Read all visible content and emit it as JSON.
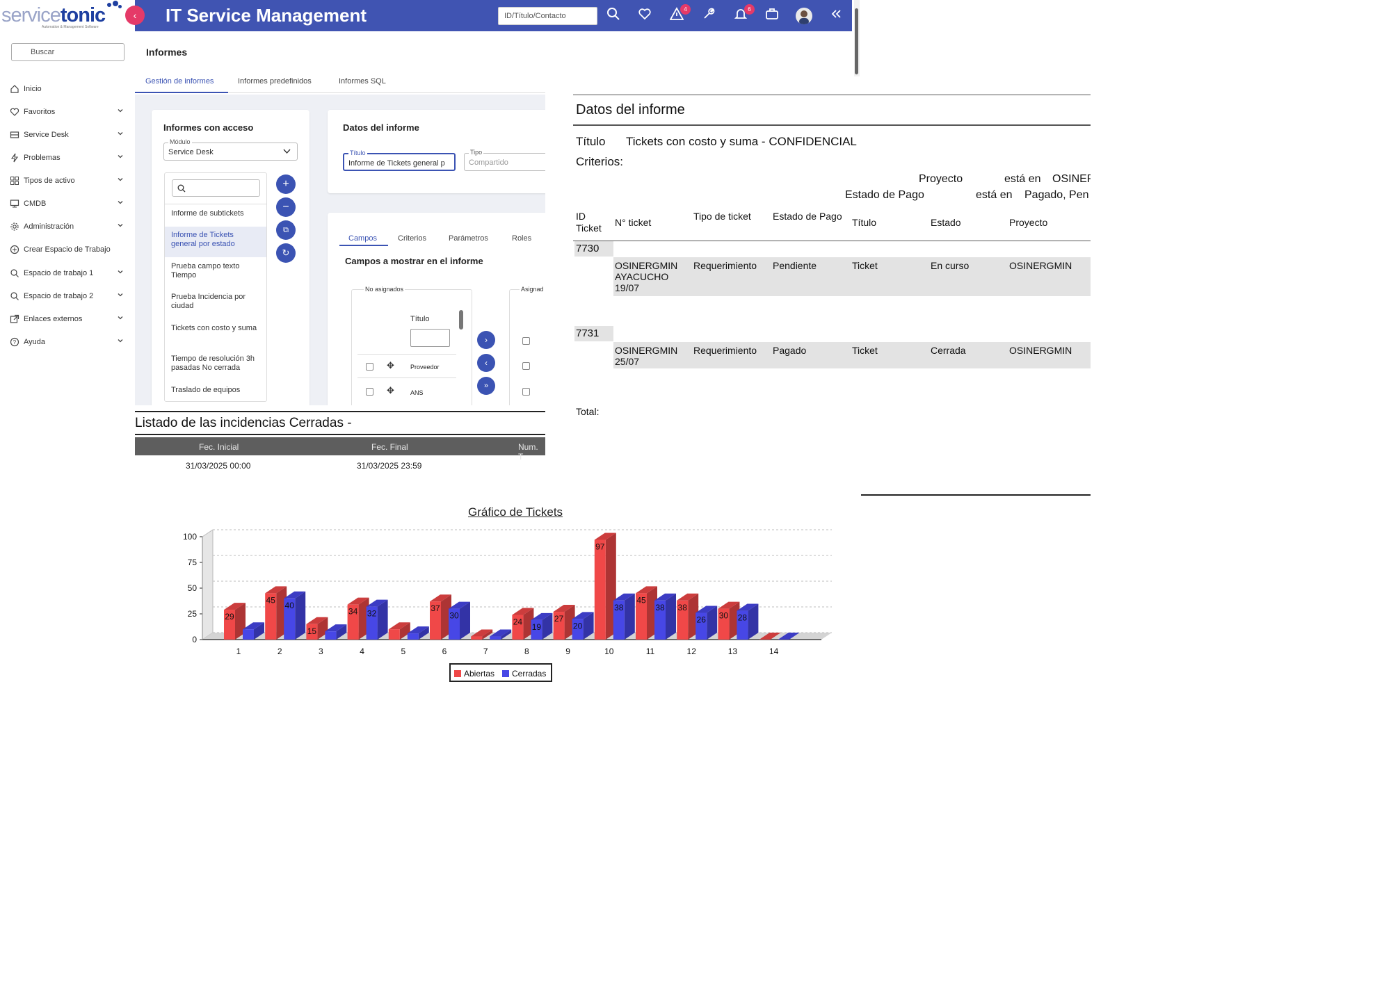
{
  "brand": {
    "part1": "service",
    "part2": "tonic",
    "tagline": "Automation & Management Software"
  },
  "app_title": "IT Service Management",
  "top_search": {
    "value": "ID/Título/Contacto"
  },
  "badges": {
    "alerts": "4",
    "notifications": "6"
  },
  "sidebar": {
    "search_placeholder": "Buscar",
    "items": [
      {
        "label": "Inicio",
        "icon": "home-icon"
      },
      {
        "label": "Favoritos",
        "icon": "heart-icon"
      },
      {
        "label": "Service Desk",
        "icon": "inbox-icon"
      },
      {
        "label": "Problemas",
        "icon": "bolt-icon"
      },
      {
        "label": "Tipos de activo",
        "icon": "grid-icon"
      },
      {
        "label": "CMDB",
        "icon": "monitor-icon"
      },
      {
        "label": "Administración",
        "icon": "gear-icon"
      },
      {
        "label": "Crear Espacio de Trabajo",
        "icon": "plus-circle-icon"
      },
      {
        "label": "Espacio de trabajo 1",
        "icon": "search-doc-icon"
      },
      {
        "label": "Espacio de trabajo 2",
        "icon": "search-doc-icon"
      },
      {
        "label": "Enlaces externos",
        "icon": "external-link-icon"
      },
      {
        "label": "Ayuda",
        "icon": "help-icon"
      }
    ]
  },
  "page": {
    "title": "Informes",
    "tabs": [
      "Gestión de informes",
      "Informes predefinidos",
      "Informes SQL"
    ]
  },
  "access_card": {
    "title": "Informes con acceso",
    "module_label": "Módulo",
    "module_value": "Service Desk",
    "reports": [
      "Informe de subtickets",
      "Informe de Tickets general por estado",
      "Prueba campo texto Tiempo",
      "Prueba Incidencia por ciudad",
      "Tickets con costo y suma",
      "Tiempo de resolución 3h pasadas No cerrada",
      "Traslado de equipos"
    ]
  },
  "data_card": {
    "title": "Datos del informe",
    "titulo_label": "Título",
    "titulo_value": "Informe de Tickets general p",
    "tipo_label": "Tipo",
    "tipo_value": "Compartido"
  },
  "fields_card": {
    "tabs": [
      "Campos",
      "Criterios",
      "Parámetros",
      "Roles"
    ],
    "heading": "Campos a mostrar en el informe",
    "unassigned_label": "No asignados",
    "assigned_label": "Asignad",
    "column_header": "Título",
    "rows": [
      "Proveedor",
      "ANS"
    ]
  },
  "report": {
    "heading": "Datos del informe",
    "title_label": "Título",
    "title_value": "Tickets con costo y suma - CONFIDENCIAL",
    "criteria_label": "Criterios:",
    "criteria": [
      {
        "field": "Proyecto",
        "op": "está en",
        "value": "OSINER"
      },
      {
        "field": "Estado de Pago",
        "op": "está en",
        "value": "Pagado, Pen"
      }
    ],
    "columns": [
      "ID Ticket",
      "N° ticket",
      "Tipo de ticket",
      "Estado de Pago",
      "Título",
      "Estado",
      "Proyecto"
    ],
    "rows": [
      {
        "id": "7730",
        "numero": "OSINERGMIN AYACUCHO 19/07",
        "tipo": "Requerimiento",
        "pago": "Pendiente",
        "titulo": "Ticket",
        "estado": "En curso",
        "proyecto": "OSINERGMIN"
      },
      {
        "id": "7731",
        "numero": "OSINERGMIN 25/07",
        "tipo": "Requerimiento",
        "pago": "Pagado",
        "titulo": "Ticket",
        "estado": "Cerrada",
        "proyecto": "OSINERGMIN"
      }
    ],
    "total_label": "Total:"
  },
  "listado": {
    "title": "Listado de las incidencias Cerradas -",
    "headers": [
      "Fec. Inicial",
      "Fec. Final",
      "Num. T"
    ],
    "values": [
      "31/03/2025 00:00",
      "31/03/2025 23:59"
    ]
  },
  "chart_data": {
    "type": "bar",
    "title": "Gráfico de Tickets",
    "categories": [
      "1",
      "2",
      "3",
      "4",
      "5",
      "6",
      "7",
      "8",
      "9",
      "10",
      "11",
      "12",
      "13",
      "14"
    ],
    "series": [
      {
        "name": "Abiertas",
        "color": "#f04848",
        "values": [
          29,
          45,
          15,
          34,
          10,
          37,
          3,
          24,
          27,
          97,
          45,
          38,
          30,
          0
        ]
      },
      {
        "name": "Cerradas",
        "color": "#4747e6",
        "values": [
          10,
          40,
          8,
          32,
          6,
          30,
          3,
          19,
          20,
          38,
          38,
          26,
          28,
          0
        ]
      }
    ],
    "value_labels": {
      "Abiertas": [
        "29",
        "45",
        "15",
        "34",
        "",
        "37",
        "",
        "24",
        "27",
        "97",
        "45",
        "38",
        "30",
        ""
      ],
      "Cerradas": [
        "",
        "40",
        "",
        "32",
        "",
        "30",
        "",
        "19",
        "20",
        "38",
        "38",
        "26",
        "28",
        ""
      ]
    },
    "yticks": [
      "0",
      "25",
      "50",
      "75",
      "100"
    ],
    "ylim": [
      0,
      100
    ],
    "grid": true,
    "legend_position": "bottom-center"
  }
}
